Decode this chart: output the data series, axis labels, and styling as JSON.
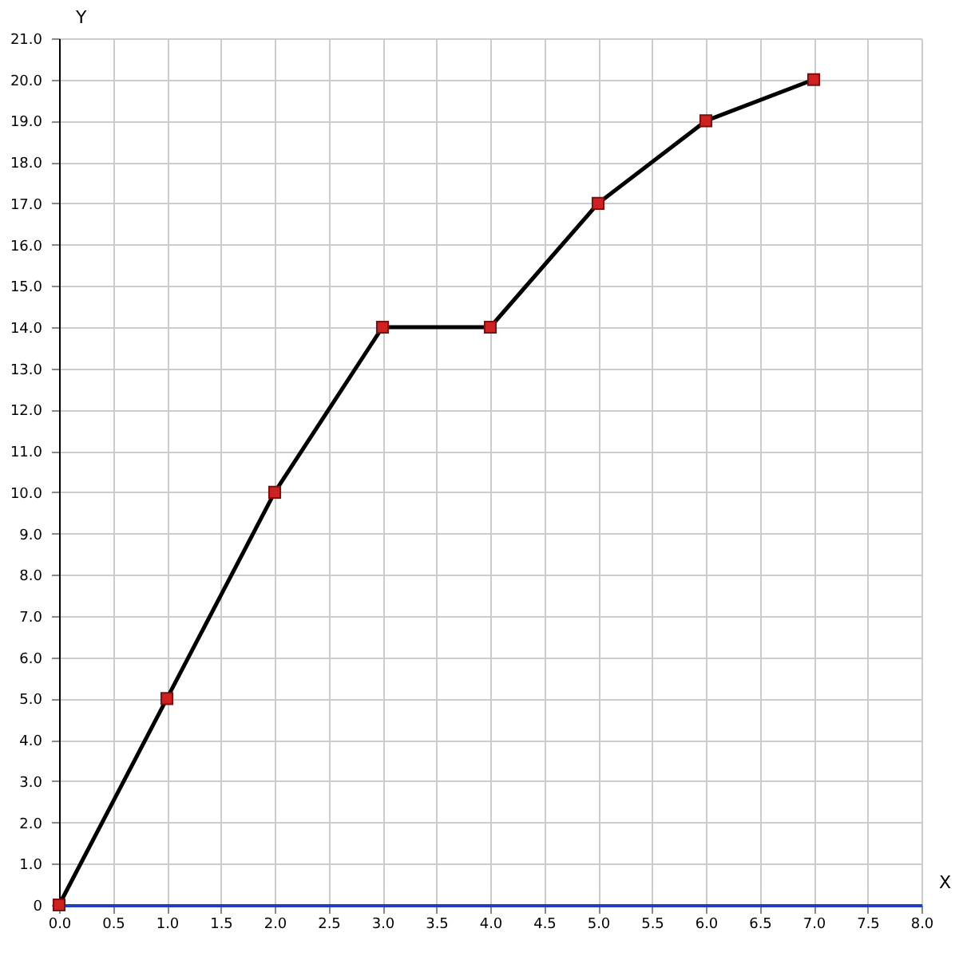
{
  "chart_data": {
    "type": "line",
    "xlabel": "X",
    "ylabel": "Y",
    "x": [
      0,
      1,
      2,
      3,
      4,
      5,
      6,
      7
    ],
    "series": [
      {
        "color": "#000000",
        "values": [
          0,
          5,
          10,
          14,
          14,
          17,
          19,
          20
        ]
      },
      {
        "type": "scatter",
        "color": "#cc2222",
        "marker": "square",
        "values": [
          0,
          5,
          10,
          14,
          14,
          17,
          19,
          20
        ]
      }
    ],
    "xlim": [
      0,
      8
    ],
    "ylim": [
      0,
      21
    ],
    "xticks": [
      {
        "value": 0,
        "label": "0.0"
      },
      {
        "value": 0.5,
        "label": "0.5"
      },
      {
        "value": 1,
        "label": "1.0"
      },
      {
        "value": 1.5,
        "label": "1.5"
      },
      {
        "value": 2,
        "label": "2.0"
      },
      {
        "value": 2.5,
        "label": "2.5"
      },
      {
        "value": 3,
        "label": "3.0"
      },
      {
        "value": 3.5,
        "label": "3.5"
      },
      {
        "value": 4,
        "label": "4.0"
      },
      {
        "value": 4.5,
        "label": "4.5"
      },
      {
        "value": 5,
        "label": "5.0"
      },
      {
        "value": 5.5,
        "label": "5.5"
      },
      {
        "value": 6,
        "label": "6.0"
      },
      {
        "value": 6.5,
        "label": "6.5"
      },
      {
        "value": 7,
        "label": "7.0"
      },
      {
        "value": 7.5,
        "label": "7.5"
      },
      {
        "value": 8,
        "label": "8.0"
      }
    ],
    "yticks": [
      0,
      {
        "value": 1,
        "label": "1.0"
      },
      {
        "value": 2,
        "label": "2.0"
      },
      {
        "value": 3,
        "label": "3.0"
      },
      {
        "value": 4,
        "label": "4.0"
      },
      {
        "value": 5,
        "label": "5.0"
      },
      {
        "value": 6,
        "label": "6.0"
      },
      {
        "value": 7,
        "label": "7.0"
      },
      {
        "value": 8,
        "label": "8.0"
      },
      {
        "value": 9,
        "label": "9.0"
      },
      {
        "value": 10,
        "label": "10.0"
      },
      {
        "value": 11,
        "label": "11.0"
      },
      {
        "value": 12,
        "label": "12.0"
      },
      {
        "value": 13,
        "label": "13.0"
      },
      {
        "value": 14,
        "label": "14.0"
      },
      {
        "value": 15,
        "label": "15.0"
      },
      {
        "value": 16,
        "label": "16.0"
      },
      {
        "value": 17,
        "label": "17.0"
      },
      {
        "value": 18,
        "label": "18.0"
      },
      {
        "value": 19,
        "label": "19.0"
      },
      {
        "value": 20,
        "label": "20.0"
      },
      {
        "value": 21,
        "label": "21.0"
      }
    ],
    "grid": true
  }
}
